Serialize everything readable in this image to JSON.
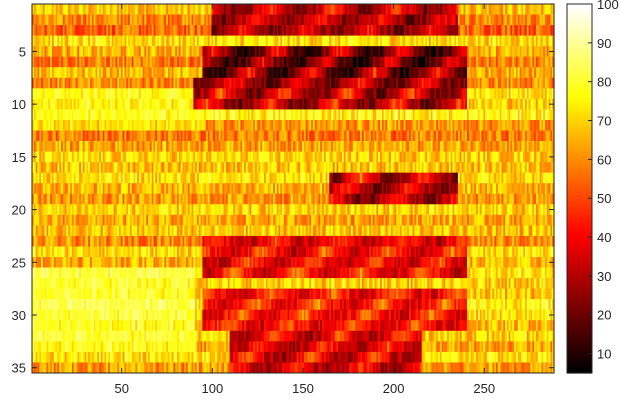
{
  "chart_data": {
    "type": "heatmap",
    "title": "",
    "xlabel": "",
    "ylabel": "",
    "colormap": "hot",
    "xlim": [
      0.5,
      288.5
    ],
    "ylim": [
      35.5,
      0.5
    ],
    "x_ticks": [
      50,
      100,
      150,
      200,
      250
    ],
    "x_tick_labels": [
      "50",
      "100",
      "150",
      "200",
      "250"
    ],
    "y_ticks": [
      5,
      10,
      15,
      20,
      25,
      30,
      35
    ],
    "y_tick_labels": [
      "5",
      "10",
      "15",
      "20",
      "25",
      "30",
      "35"
    ],
    "rows": 35,
    "cols": 288,
    "colorbar": {
      "limits": [
        5,
        100
      ],
      "ticks": [
        10,
        20,
        30,
        40,
        50,
        60,
        70,
        80,
        90,
        100
      ],
      "tick_labels": [
        "10",
        "20",
        "30",
        "40",
        "50",
        "60",
        "70",
        "80",
        "90",
        "100"
      ]
    },
    "row_baseline": [
      68,
      60,
      55,
      72,
      65,
      58,
      66,
      60,
      74,
      70,
      76,
      62,
      58,
      64,
      70,
      68,
      72,
      66,
      62,
      70,
      64,
      68,
      60,
      72,
      66,
      74,
      70,
      68,
      76,
      72,
      66,
      70,
      64,
      72,
      62
    ],
    "dark_regions": [
      {
        "rows": [
          1,
          3
        ],
        "cols": [
          100,
          235
        ],
        "value": 22
      },
      {
        "rows": [
          5,
          7
        ],
        "cols": [
          95,
          240
        ],
        "value": 10
      },
      {
        "rows": [
          8,
          10
        ],
        "cols": [
          90,
          240
        ],
        "value": 20
      },
      {
        "rows": [
          17,
          19
        ],
        "cols": [
          165,
          235
        ],
        "value": 22
      },
      {
        "rows": [
          23,
          26
        ],
        "cols": [
          95,
          240
        ],
        "value": 32
      },
      {
        "rows": [
          28,
          31
        ],
        "cols": [
          95,
          240
        ],
        "value": 35
      },
      {
        "rows": [
          32,
          35
        ],
        "cols": [
          110,
          215
        ],
        "value": 28
      }
    ],
    "bright_regions": [
      {
        "rows": [
          26,
          33
        ],
        "cols": [
          1,
          90
        ],
        "value": 92
      },
      {
        "rows": [
          9,
          12
        ],
        "cols": [
          1,
          95
        ],
        "value": 82
      }
    ]
  }
}
